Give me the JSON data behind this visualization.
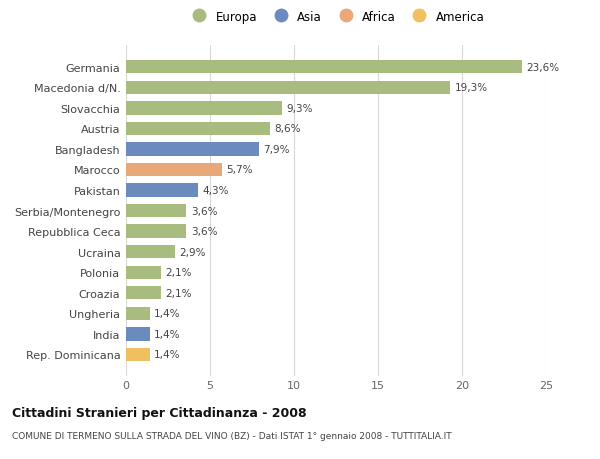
{
  "categories": [
    "Rep. Dominicana",
    "India",
    "Ungheria",
    "Croazia",
    "Polonia",
    "Ucraina",
    "Repubblica Ceca",
    "Serbia/Montenegro",
    "Pakistan",
    "Marocco",
    "Bangladesh",
    "Austria",
    "Slovacchia",
    "Macedonia d/N.",
    "Germania"
  ],
  "values": [
    1.4,
    1.4,
    1.4,
    2.1,
    2.1,
    2.9,
    3.6,
    3.6,
    4.3,
    5.7,
    7.9,
    8.6,
    9.3,
    19.3,
    23.6
  ],
  "labels": [
    "1,4%",
    "1,4%",
    "1,4%",
    "2,1%",
    "2,1%",
    "2,9%",
    "3,6%",
    "3,6%",
    "4,3%",
    "5,7%",
    "7,9%",
    "8,6%",
    "9,3%",
    "19,3%",
    "23,6%"
  ],
  "colors": [
    "#f0c060",
    "#6b8bbf",
    "#a8bc80",
    "#a8bc80",
    "#a8bc80",
    "#a8bc80",
    "#a8bc80",
    "#a8bc80",
    "#6b8bbf",
    "#e8a878",
    "#6b8bbf",
    "#a8bc80",
    "#a8bc80",
    "#a8bc80",
    "#a8bc80"
  ],
  "legend_labels": [
    "Europa",
    "Asia",
    "Africa",
    "America"
  ],
  "legend_colors": [
    "#a8bc80",
    "#6b8bbf",
    "#e8a878",
    "#f0c060"
  ],
  "title": "Cittadini Stranieri per Cittadinanza - 2008",
  "subtitle": "COMUNE DI TERMENO SULLA STRADA DEL VINO (BZ) - Dati ISTAT 1° gennaio 2008 - TUTTITALIA.IT",
  "xlim": [
    0,
    25
  ],
  "xticks": [
    0,
    5,
    10,
    15,
    20,
    25
  ],
  "background_color": "#ffffff",
  "grid_color": "#d8d8d8"
}
